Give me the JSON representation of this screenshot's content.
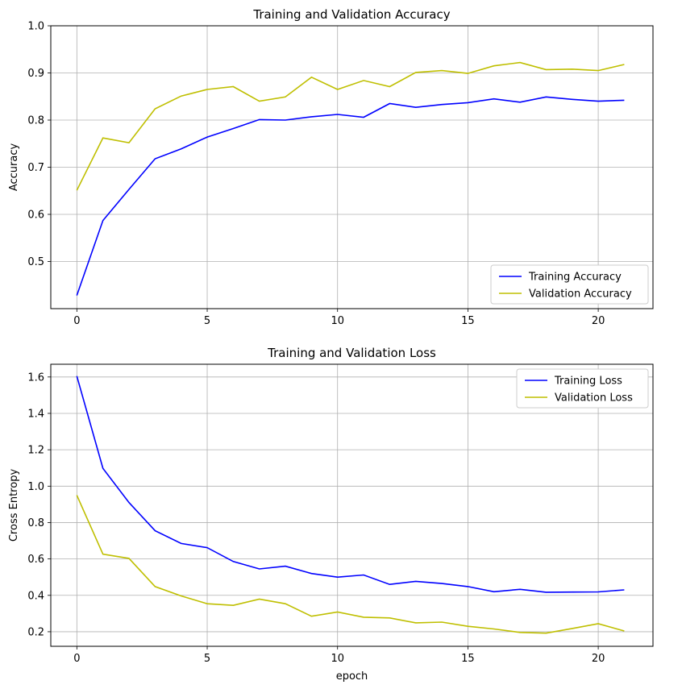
{
  "chart_data": [
    {
      "type": "line",
      "title": "Training and Validation Accuracy",
      "xlabel": "",
      "ylabel": "Accuracy",
      "xlim": [
        -1,
        22.1
      ],
      "ylim": [
        0.4,
        1.0
      ],
      "xticks": [
        0,
        5,
        10,
        15,
        20
      ],
      "yticks": [
        0.5,
        0.6,
        0.7,
        0.8,
        0.9,
        1.0
      ],
      "grid": true,
      "legend_position": "bottom-right",
      "x": [
        0,
        1,
        2,
        3,
        4,
        5,
        6,
        7,
        8,
        9,
        10,
        11,
        12,
        13,
        14,
        15,
        16,
        17,
        18,
        19,
        20,
        21
      ],
      "series": [
        {
          "name": "Training Accuracy",
          "color": "#0000ff",
          "values": [
            0.428,
            0.587,
            0.653,
            0.718,
            0.739,
            0.764,
            0.782,
            0.801,
            0.8,
            0.807,
            0.812,
            0.806,
            0.835,
            0.827,
            0.833,
            0.837,
            0.845,
            0.838,
            0.849,
            0.844,
            0.84,
            0.842
          ]
        },
        {
          "name": "Validation Accuracy",
          "color": "#bfbf00",
          "values": [
            0.651,
            0.762,
            0.752,
            0.824,
            0.851,
            0.865,
            0.871,
            0.84,
            0.849,
            0.891,
            0.865,
            0.884,
            0.871,
            0.901,
            0.905,
            0.899,
            0.915,
            0.922,
            0.907,
            0.908,
            0.905,
            0.918
          ]
        }
      ]
    },
    {
      "type": "line",
      "title": "Training and Validation Loss",
      "xlabel": "epoch",
      "ylabel": "Cross Entropy",
      "xlim": [
        -1,
        22.1
      ],
      "ylim": [
        0.12,
        1.67
      ],
      "xticks": [
        0,
        5,
        10,
        15,
        20
      ],
      "yticks": [
        0.2,
        0.4,
        0.6,
        0.8,
        1.0,
        1.2,
        1.4,
        1.6
      ],
      "grid": true,
      "legend_position": "top-right",
      "x": [
        0,
        1,
        2,
        3,
        4,
        5,
        6,
        7,
        8,
        9,
        10,
        11,
        12,
        13,
        14,
        15,
        16,
        17,
        18,
        19,
        20,
        21
      ],
      "series": [
        {
          "name": "Training Loss",
          "color": "#0000ff",
          "values": [
            1.605,
            1.098,
            0.91,
            0.755,
            0.685,
            0.662,
            0.586,
            0.545,
            0.56,
            0.52,
            0.5,
            0.512,
            0.46,
            0.477,
            0.465,
            0.448,
            0.42,
            0.433,
            0.417,
            0.418,
            0.419,
            0.43
          ]
        },
        {
          "name": "Validation Loss",
          "color": "#bfbf00",
          "values": [
            0.95,
            0.626,
            0.603,
            0.448,
            0.397,
            0.354,
            0.345,
            0.379,
            0.354,
            0.285,
            0.308,
            0.28,
            0.276,
            0.249,
            0.253,
            0.23,
            0.215,
            0.196,
            0.192,
            0.218,
            0.244,
            0.204
          ]
        }
      ]
    }
  ]
}
